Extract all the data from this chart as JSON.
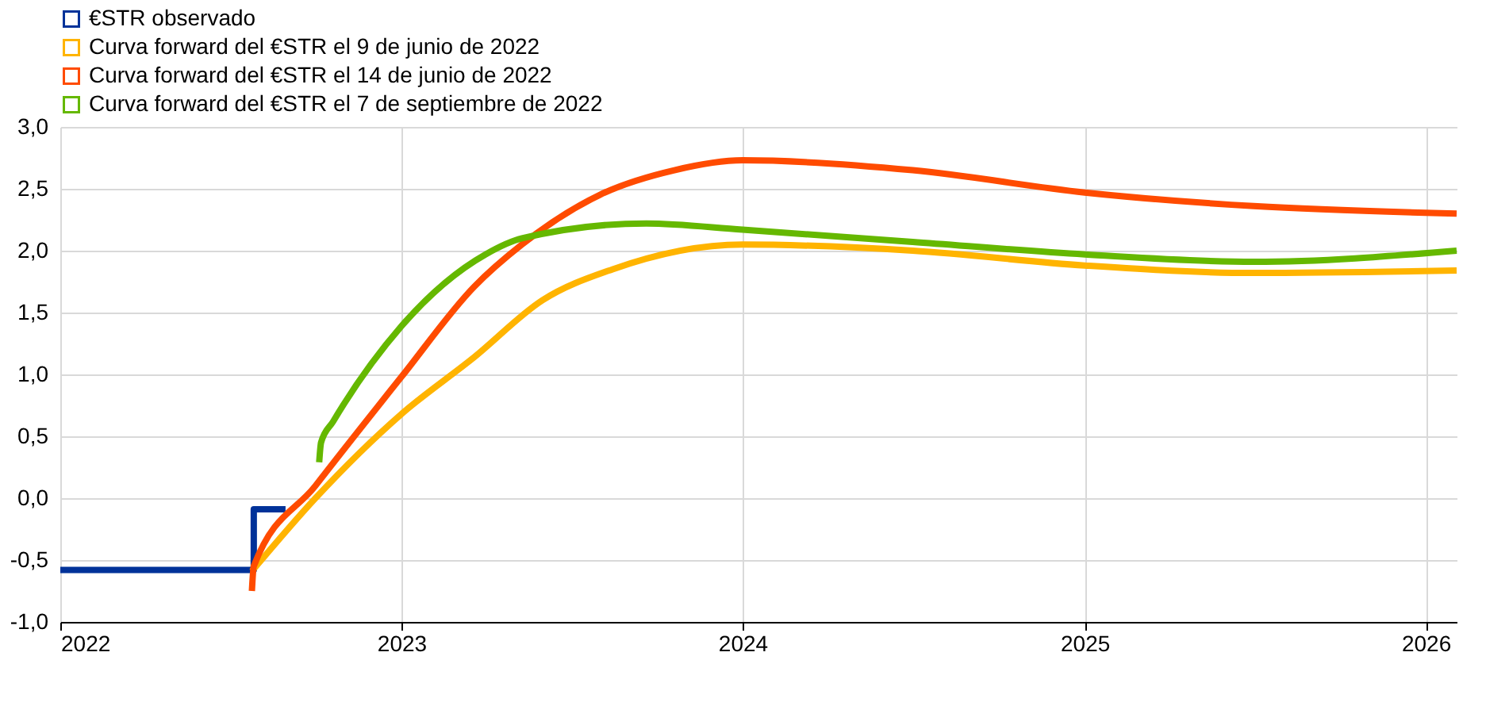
{
  "chart_data": {
    "type": "line",
    "legend": "top left",
    "grid": true,
    "line_style": "solid",
    "marker": "none",
    "xlim": [
      "2022-01-01",
      "2026-02-03"
    ],
    "xticks": [
      "2022",
      "2023",
      "2024",
      "2025",
      "2026"
    ],
    "ylim": [
      -1.0,
      3.0
    ],
    "yticks": [
      {
        "value": -1.0,
        "label": "-1,0"
      },
      {
        "value": -0.5,
        "label": "-0,5"
      },
      {
        "value": 0,
        "label": "0,0"
      },
      {
        "value": 0.5,
        "label": "0,5"
      },
      {
        "value": 1.0,
        "label": "1,0"
      },
      {
        "value": 1.5,
        "label": "1,5"
      },
      {
        "value": 2.0,
        "label": "2,0"
      },
      {
        "value": 2.5,
        "label": "2,5"
      },
      {
        "value": 3.0,
        "label": "3,0"
      }
    ],
    "series": [
      {
        "name": "€STR observado",
        "type": "step",
        "color": "#003299",
        "x": [
          "2022-01-01",
          "2022-07-27",
          "2022-08-30"
        ],
        "values": [
          -0.58,
          -0.09,
          -0.09
        ]
      },
      {
        "name": "Curva forward del €STR el 9 de junio de 2022",
        "color": "#ffb400",
        "x": [
          "2022-07-25",
          "2022-10-01",
          "2023-01-01",
          "2023-03-20",
          "2023-06-01",
          "2023-08-15",
          "2024-01-01",
          "2024-07-01",
          "2025-01-01",
          "2025-07-01",
          "2026-02-03"
        ],
        "values": [
          -0.59,
          0.0,
          0.68,
          1.14,
          1.6,
          1.85,
          2.05,
          2.0,
          1.88,
          1.82,
          1.84
        ]
      },
      {
        "name": "Curva forward del €STR el 14 de junio de 2022",
        "color": "#ff4b00",
        "x": [
          "2022-07-25",
          "2022-07-27",
          "2022-10-01",
          "2023-01-01",
          "2023-03-20",
          "2023-05-10",
          "2023-08-01",
          "2023-10-20",
          "2024-01-01",
          "2024-07-01",
          "2025-01-01",
          "2025-07-01",
          "2026-02-03"
        ],
        "values": [
          -0.75,
          -0.55,
          0.1,
          0.98,
          1.71,
          2.05,
          2.45,
          2.65,
          2.73,
          2.65,
          2.47,
          2.36,
          2.3
        ]
      },
      {
        "name": "Curva forward del €STR el 7 de septiembre de 2022",
        "color": "#65b800",
        "x": [
          "2022-10-05",
          "2022-10-07",
          "2022-10-20",
          "2023-01-01",
          "2023-04-01",
          "2023-05-10",
          "2023-09-20",
          "2024-01-01",
          "2024-07-01",
          "2025-01-01",
          "2025-07-01",
          "2026-02-03"
        ],
        "values": [
          0.29,
          0.45,
          0.62,
          1.39,
          1.97,
          2.1,
          2.22,
          2.17,
          2.07,
          1.97,
          1.91,
          2.0
        ]
      }
    ]
  }
}
